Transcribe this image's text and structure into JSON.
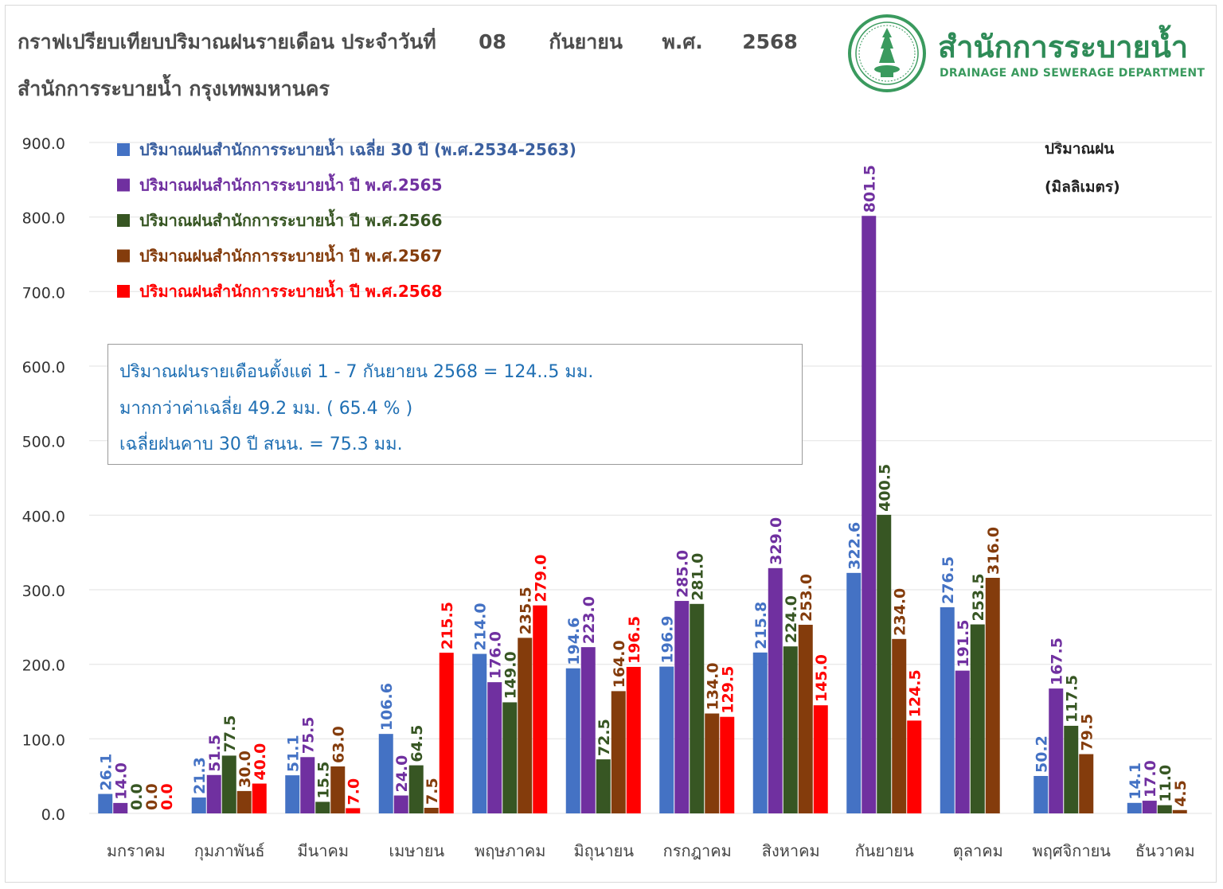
{
  "title": {
    "prefix": "กราฟเปรียบเทียบปริมาณฝนรายเดือน ประจำวันที่",
    "day": "08",
    "month": "กันยายน",
    "era": "พ.ศ.",
    "year": "2568",
    "subtitle": "สำนักการระบายน้ำ กรุงเทพมหานคร"
  },
  "logo": {
    "name_th": "สำนักการระบายน้ำ",
    "name_en": "DRAINAGE AND SEWERAGE DEPARTMENT"
  },
  "unit_label": {
    "line1": "ปริมาณฝน",
    "line2": "(มิลลิเมตร)"
  },
  "note": {
    "line1": "ปริมาณฝนรายเดือนตั้งแต่ 1 - 7  กันยายน 2568 = 124..5 มม.",
    "line2": "มากกว่าค่าเฉลี่ย 49.2 มม. ( 65.4 % )",
    "line3": "เฉลี่ยฝนคาบ 30 ปี สนน. = 75.3 มม."
  },
  "colors": {
    "avg30": "#4472c4",
    "y2565": "#7030a0",
    "y2566": "#375623",
    "y2567": "#843c0c",
    "y2568": "#ff0000",
    "avg30_legend": "#3a5f9f"
  },
  "chart_data": {
    "type": "bar",
    "ylim": [
      0,
      900
    ],
    "yticks": [
      "0.0",
      "100.0",
      "200.0",
      "300.0",
      "400.0",
      "500.0",
      "600.0",
      "700.0",
      "800.0",
      "900.0"
    ],
    "grid": true,
    "legend_position": "top-left",
    "categories": [
      "มกราคม",
      "กุมภาพันธ์",
      "มีนาคม",
      "เมษายน",
      "พฤษภาคม",
      "มิถุนายน",
      "กรกฎาคม",
      "สิงหาคม",
      "กันยายน",
      "ตุลาคม",
      "พฤศจิกายน",
      "ธันวาคม"
    ],
    "series": [
      {
        "name": "ปริมาณฝนสำนักการระบายน้ำ เฉลี่ย 30 ปี (พ.ศ.2534-2563)",
        "key": "avg30",
        "values": [
          26.1,
          21.3,
          51.1,
          106.6,
          214.0,
          194.6,
          196.9,
          215.8,
          322.6,
          276.5,
          50.2,
          14.1
        ],
        "labels": [
          "26.1",
          "21.3",
          "51.1",
          "106.6",
          "214.0",
          "194.6",
          "196.9",
          "215.8",
          "322.6",
          "276.5",
          "50.2",
          "14.1"
        ]
      },
      {
        "name": "ปริมาณฝนสำนักการระบายน้ำ ปี พ.ศ.2565",
        "key": "y2565",
        "values": [
          14.0,
          51.5,
          75.5,
          24.0,
          176.0,
          223.0,
          285.0,
          329.0,
          801.5,
          191.5,
          167.5,
          17.0
        ],
        "labels": [
          "14.0",
          "51.5",
          "75.5",
          "24.0",
          "176.0",
          "223.0",
          "285.0",
          "329.0",
          "801.5",
          "191.5",
          "167.5",
          "17.0"
        ]
      },
      {
        "name": "ปริมาณฝนสำนักการระบายน้ำ ปี พ.ศ.2566",
        "key": "y2566",
        "values": [
          0.0,
          77.5,
          15.5,
          64.5,
          149.0,
          72.5,
          281.0,
          224.0,
          400.5,
          253.5,
          117.5,
          11.0
        ],
        "labels": [
          "0.0",
          "77.5",
          "15.5",
          "64.5",
          "149.0",
          "72.5",
          "281.0",
          "224.0",
          "400.5",
          "253.5",
          "117.5",
          "11.0"
        ]
      },
      {
        "name": "ปริมาณฝนสำนักการระบายน้ำ ปี พ.ศ.2567",
        "key": "y2567",
        "values": [
          0.0,
          30.0,
          63.0,
          7.5,
          235.5,
          164.0,
          134.0,
          253.0,
          234.0,
          316.0,
          79.5,
          4.5
        ],
        "labels": [
          "0.0",
          "30.0",
          "63.0",
          "7.5",
          "235.5",
          "164.0",
          "134.0",
          "253.0",
          "234.0",
          "316.0",
          "79.5",
          "4.5"
        ]
      },
      {
        "name": "ปริมาณฝนสำนักการระบายน้ำ ปี พ.ศ.2568",
        "key": "y2568",
        "values": [
          0.0,
          40.0,
          7.0,
          215.5,
          279.0,
          196.5,
          129.5,
          145.0,
          124.5,
          null,
          null,
          null
        ],
        "labels": [
          "0.0",
          "40.0",
          "7.0",
          "215.5",
          "279.0",
          "196.5",
          "129.5",
          "145.0",
          "124.5",
          null,
          null,
          null
        ]
      }
    ]
  }
}
